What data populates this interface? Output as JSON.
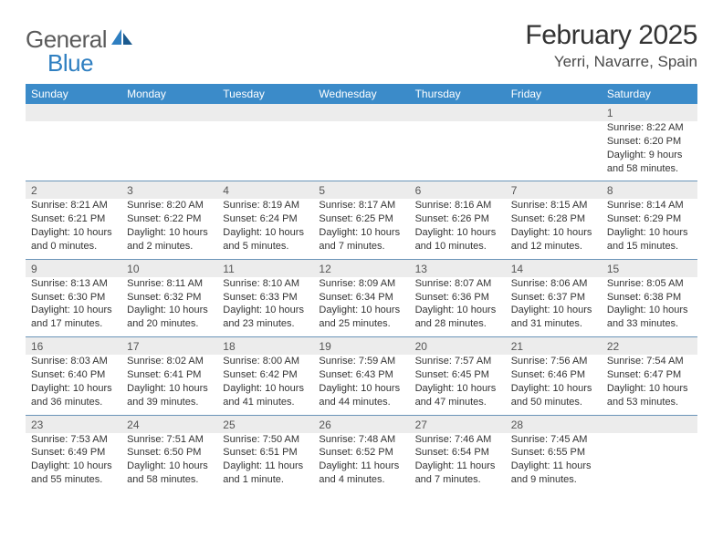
{
  "logo": {
    "text1": "General",
    "text2": "Blue"
  },
  "title": "February 2025",
  "location": "Yerri, Navarre, Spain",
  "colors": {
    "headerBg": "#3b8bc9",
    "headerText": "#ffffff",
    "shade": "#ececec",
    "rule": "#6a94b8",
    "text": "#333333"
  },
  "dayHeaders": [
    "Sunday",
    "Monday",
    "Tuesday",
    "Wednesday",
    "Thursday",
    "Friday",
    "Saturday"
  ],
  "weeks": [
    [
      null,
      null,
      null,
      null,
      null,
      null,
      {
        "n": "1",
        "sunrise": "8:22 AM",
        "sunset": "6:20 PM",
        "dl1": "Daylight: 9 hours",
        "dl2": "and 58 minutes."
      }
    ],
    [
      {
        "n": "2",
        "sunrise": "8:21 AM",
        "sunset": "6:21 PM",
        "dl1": "Daylight: 10 hours",
        "dl2": "and 0 minutes."
      },
      {
        "n": "3",
        "sunrise": "8:20 AM",
        "sunset": "6:22 PM",
        "dl1": "Daylight: 10 hours",
        "dl2": "and 2 minutes."
      },
      {
        "n": "4",
        "sunrise": "8:19 AM",
        "sunset": "6:24 PM",
        "dl1": "Daylight: 10 hours",
        "dl2": "and 5 minutes."
      },
      {
        "n": "5",
        "sunrise": "8:17 AM",
        "sunset": "6:25 PM",
        "dl1": "Daylight: 10 hours",
        "dl2": "and 7 minutes."
      },
      {
        "n": "6",
        "sunrise": "8:16 AM",
        "sunset": "6:26 PM",
        "dl1": "Daylight: 10 hours",
        "dl2": "and 10 minutes."
      },
      {
        "n": "7",
        "sunrise": "8:15 AM",
        "sunset": "6:28 PM",
        "dl1": "Daylight: 10 hours",
        "dl2": "and 12 minutes."
      },
      {
        "n": "8",
        "sunrise": "8:14 AM",
        "sunset": "6:29 PM",
        "dl1": "Daylight: 10 hours",
        "dl2": "and 15 minutes."
      }
    ],
    [
      {
        "n": "9",
        "sunrise": "8:13 AM",
        "sunset": "6:30 PM",
        "dl1": "Daylight: 10 hours",
        "dl2": "and 17 minutes."
      },
      {
        "n": "10",
        "sunrise": "8:11 AM",
        "sunset": "6:32 PM",
        "dl1": "Daylight: 10 hours",
        "dl2": "and 20 minutes."
      },
      {
        "n": "11",
        "sunrise": "8:10 AM",
        "sunset": "6:33 PM",
        "dl1": "Daylight: 10 hours",
        "dl2": "and 23 minutes."
      },
      {
        "n": "12",
        "sunrise": "8:09 AM",
        "sunset": "6:34 PM",
        "dl1": "Daylight: 10 hours",
        "dl2": "and 25 minutes."
      },
      {
        "n": "13",
        "sunrise": "8:07 AM",
        "sunset": "6:36 PM",
        "dl1": "Daylight: 10 hours",
        "dl2": "and 28 minutes."
      },
      {
        "n": "14",
        "sunrise": "8:06 AM",
        "sunset": "6:37 PM",
        "dl1": "Daylight: 10 hours",
        "dl2": "and 31 minutes."
      },
      {
        "n": "15",
        "sunrise": "8:05 AM",
        "sunset": "6:38 PM",
        "dl1": "Daylight: 10 hours",
        "dl2": "and 33 minutes."
      }
    ],
    [
      {
        "n": "16",
        "sunrise": "8:03 AM",
        "sunset": "6:40 PM",
        "dl1": "Daylight: 10 hours",
        "dl2": "and 36 minutes."
      },
      {
        "n": "17",
        "sunrise": "8:02 AM",
        "sunset": "6:41 PM",
        "dl1": "Daylight: 10 hours",
        "dl2": "and 39 minutes."
      },
      {
        "n": "18",
        "sunrise": "8:00 AM",
        "sunset": "6:42 PM",
        "dl1": "Daylight: 10 hours",
        "dl2": "and 41 minutes."
      },
      {
        "n": "19",
        "sunrise": "7:59 AM",
        "sunset": "6:43 PM",
        "dl1": "Daylight: 10 hours",
        "dl2": "and 44 minutes."
      },
      {
        "n": "20",
        "sunrise": "7:57 AM",
        "sunset": "6:45 PM",
        "dl1": "Daylight: 10 hours",
        "dl2": "and 47 minutes."
      },
      {
        "n": "21",
        "sunrise": "7:56 AM",
        "sunset": "6:46 PM",
        "dl1": "Daylight: 10 hours",
        "dl2": "and 50 minutes."
      },
      {
        "n": "22",
        "sunrise": "7:54 AM",
        "sunset": "6:47 PM",
        "dl1": "Daylight: 10 hours",
        "dl2": "and 53 minutes."
      }
    ],
    [
      {
        "n": "23",
        "sunrise": "7:53 AM",
        "sunset": "6:49 PM",
        "dl1": "Daylight: 10 hours",
        "dl2": "and 55 minutes."
      },
      {
        "n": "24",
        "sunrise": "7:51 AM",
        "sunset": "6:50 PM",
        "dl1": "Daylight: 10 hours",
        "dl2": "and 58 minutes."
      },
      {
        "n": "25",
        "sunrise": "7:50 AM",
        "sunset": "6:51 PM",
        "dl1": "Daylight: 11 hours",
        "dl2": "and 1 minute."
      },
      {
        "n": "26",
        "sunrise": "7:48 AM",
        "sunset": "6:52 PM",
        "dl1": "Daylight: 11 hours",
        "dl2": "and 4 minutes."
      },
      {
        "n": "27",
        "sunrise": "7:46 AM",
        "sunset": "6:54 PM",
        "dl1": "Daylight: 11 hours",
        "dl2": "and 7 minutes."
      },
      {
        "n": "28",
        "sunrise": "7:45 AM",
        "sunset": "6:55 PM",
        "dl1": "Daylight: 11 hours",
        "dl2": "and 9 minutes."
      },
      null
    ]
  ]
}
